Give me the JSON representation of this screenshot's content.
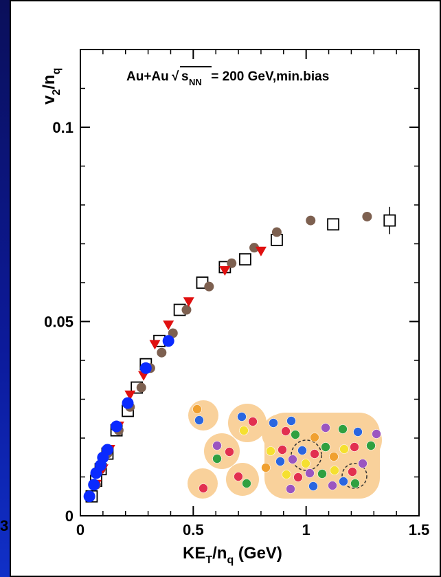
{
  "chart_data": {
    "type": "scatter",
    "xlabel": "KE",
    "xlabel_sub": "T",
    "xlabel_rest": "/n",
    "xlabel_sub2": "q",
    "xlabel_unit": " (GeV)",
    "ylabel": "v",
    "ylabel_sub": "2",
    "ylabel_rest": "/n",
    "ylabel_sub2": "q",
    "annotation": {
      "system": "Au+Au",
      "sqrt_symbol": "√",
      "s": "s",
      "s_sub": "NN",
      "rest": " = 200 GeV,min.bias"
    },
    "xlim": [
      0,
      1.5
    ],
    "ylim": [
      0,
      0.12
    ],
    "x_ticks": [
      "0",
      "0.5",
      "1",
      "1.5"
    ],
    "y_ticks": [
      "0",
      "0.05",
      "0.1"
    ],
    "series": [
      {
        "marker": "open-square",
        "color": "#000000",
        "points": [
          [
            0.05,
            0.005
          ],
          [
            0.07,
            0.009
          ],
          [
            0.09,
            0.012
          ],
          [
            0.12,
            0.016
          ],
          [
            0.16,
            0.022
          ],
          [
            0.21,
            0.027
          ],
          [
            0.25,
            0.033
          ],
          [
            0.29,
            0.039
          ],
          [
            0.35,
            0.045
          ],
          [
            0.44,
            0.053
          ],
          [
            0.54,
            0.06
          ],
          [
            0.64,
            0.064
          ],
          [
            0.73,
            0.066
          ],
          [
            0.87,
            0.071
          ],
          [
            1.12,
            0.075
          ],
          [
            1.37,
            0.076
          ]
        ],
        "errors": [
          0,
          0,
          0,
          0,
          0,
          0,
          0,
          0,
          0,
          0,
          0,
          0,
          0,
          0,
          0,
          0.0035
        ]
      },
      {
        "marker": "filled-circle",
        "color": "#7d6050",
        "points": [
          [
            0.07,
            0.008
          ],
          [
            0.09,
            0.012
          ],
          [
            0.12,
            0.016
          ],
          [
            0.17,
            0.022
          ],
          [
            0.22,
            0.028
          ],
          [
            0.27,
            0.033
          ],
          [
            0.31,
            0.038
          ],
          [
            0.36,
            0.042
          ],
          [
            0.41,
            0.047
          ],
          [
            0.47,
            0.053
          ],
          [
            0.57,
            0.059
          ],
          [
            0.67,
            0.065
          ],
          [
            0.77,
            0.069
          ],
          [
            0.87,
            0.073
          ],
          [
            1.02,
            0.076
          ],
          [
            1.27,
            0.077
          ]
        ]
      },
      {
        "marker": "filled-triangle-down",
        "color": "#e01010",
        "points": [
          [
            0.07,
            0.008
          ],
          [
            0.1,
            0.012
          ],
          [
            0.13,
            0.017
          ],
          [
            0.17,
            0.023
          ],
          [
            0.22,
            0.031
          ],
          [
            0.28,
            0.036
          ],
          [
            0.33,
            0.044
          ],
          [
            0.39,
            0.049
          ],
          [
            0.48,
            0.055
          ],
          [
            0.64,
            0.063
          ],
          [
            0.8,
            0.068
          ]
        ]
      },
      {
        "marker": "filled-circle",
        "color": "#0a2aff",
        "points": [
          [
            0.04,
            0.005
          ],
          [
            0.06,
            0.008
          ],
          [
            0.07,
            0.011
          ],
          [
            0.09,
            0.013
          ],
          [
            0.1,
            0.015
          ],
          [
            0.12,
            0.017
          ],
          [
            0.16,
            0.023
          ],
          [
            0.21,
            0.029
          ],
          [
            0.29,
            0.038
          ],
          [
            0.39,
            0.045
          ]
        ]
      }
    ]
  },
  "inset_image": "quark-coalescence-illustration",
  "stray_text": "3"
}
